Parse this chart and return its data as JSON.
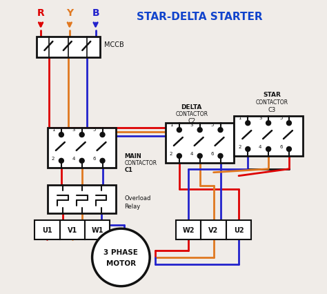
{
  "title": "STAR-DELTA STARTER",
  "red": "#dd0000",
  "orange": "#e07820",
  "blue": "#2222cc",
  "black": "#111111",
  "bg": "#f0ece8",
  "phase_labels": [
    "R",
    "Y",
    "B"
  ],
  "mccb_label": "MCCB",
  "c1_label": [
    "MAIN",
    "CONTACTOR",
    "C1"
  ],
  "c2_label": [
    "DELTA",
    "CONTACTOR",
    "C2"
  ],
  "c3_label": [
    "STAR",
    "CONTACTOR",
    "C3"
  ],
  "ol_label": [
    "Overload",
    "Relay"
  ],
  "t1_labels": [
    "U1",
    "V1",
    "W1"
  ],
  "t2_labels": [
    "W2",
    "V2",
    "U2"
  ],
  "motor_label": [
    "3 PHASE",
    "MOTOR"
  ]
}
